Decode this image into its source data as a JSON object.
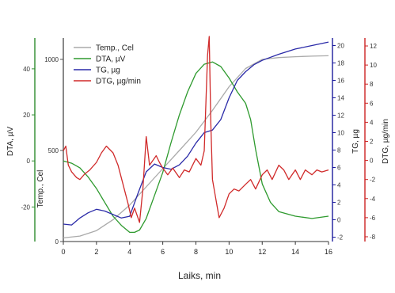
{
  "chart_data": {
    "type": "line",
    "xlabel": "Laiks, min",
    "x_ticks": [
      "0",
      "2",
      "4",
      "6",
      "8",
      "10",
      "12",
      "14",
      "16"
    ],
    "xlim": [
      0,
      16
    ],
    "axes": {
      "dta": {
        "label": "DTA, µV",
        "ylim": [
          -35,
          52
        ],
        "ticks": [
          "-20",
          "0",
          "20",
          "40"
        ],
        "color": "#2e8b2e"
      },
      "temp": {
        "label": "Temp., Cel",
        "ylim": [
          0,
          1100
        ],
        "ticks": [
          "0",
          "500",
          "1000"
        ],
        "color": "#555555"
      },
      "tg": {
        "label": "TG, µg",
        "ylim": [
          -2.5,
          20.5
        ],
        "ticks": [
          "-2",
          "0",
          "2",
          "4",
          "6",
          "8",
          "10",
          "12",
          "14",
          "16",
          "18",
          "20"
        ],
        "color": "#1c1c9c"
      },
      "dtg": {
        "label": "DTG, µg/min",
        "ylim": [
          -8.5,
          12.5
        ],
        "ticks": [
          "-8",
          "-6",
          "-4",
          "-2",
          "0",
          "2",
          "4",
          "6",
          "8",
          "10",
          "12"
        ],
        "color": "#cc2222"
      }
    },
    "legend_position": "top-left",
    "series": [
      {
        "name": "Temp., Cel",
        "axis": "temp",
        "color": "#aaaaaa",
        "x": [
          0,
          1,
          2,
          3,
          4,
          5,
          6,
          7,
          8,
          9,
          10,
          11,
          12,
          13,
          14,
          15,
          16
        ],
        "y": [
          20,
          30,
          60,
          120,
          200,
          300,
          400,
          500,
          600,
          720,
          850,
          950,
          1000,
          1010,
          1015,
          1018,
          1020
        ]
      },
      {
        "name": "DTA, µV",
        "axis": "dta",
        "color": "#2e9a2e",
        "x": [
          0,
          0.5,
          1,
          1.5,
          2,
          2.5,
          3,
          3.5,
          4,
          4.3,
          4.6,
          5,
          5.5,
          6,
          6.5,
          7,
          7.5,
          8,
          8.5,
          9,
          9.5,
          10,
          10.5,
          11,
          11.3,
          11.6,
          12,
          12.5,
          13,
          14,
          15,
          16
        ],
        "y": [
          0,
          -1,
          -3,
          -7,
          -12,
          -18,
          -24,
          -28,
          -31,
          -31,
          -30,
          -25,
          -15,
          -5,
          8,
          20,
          30,
          38,
          42,
          43,
          41,
          36,
          30,
          25,
          18,
          5,
          -10,
          -18,
          -22,
          -24,
          -25,
          -24
        ]
      },
      {
        "name": "TG, µg",
        "axis": "tg",
        "color": "#2a2aa8",
        "x": [
          0,
          0.5,
          1,
          1.5,
          2,
          2.5,
          3,
          3.5,
          4,
          4.5,
          5,
          5.5,
          6,
          6.5,
          7,
          7.5,
          8,
          8.5,
          9,
          9.5,
          10,
          10.5,
          11,
          11.5,
          12,
          13,
          14,
          15,
          16
        ],
        "y": [
          -0.5,
          -0.6,
          0.2,
          0.8,
          1.2,
          1.0,
          0.6,
          0.2,
          0.4,
          3.0,
          5.5,
          6.4,
          6.0,
          5.8,
          6.3,
          7.3,
          8.8,
          10.0,
          10.3,
          11.5,
          14.0,
          16.0,
          17.0,
          17.8,
          18.3,
          19.0,
          19.6,
          20.0,
          20.4
        ]
      },
      {
        "name": "DTG, µg/min",
        "axis": "dtg",
        "color": "#d02a2a",
        "x": [
          0,
          0.15,
          0.3,
          0.5,
          0.8,
          1,
          1.3,
          1.6,
          2,
          2.3,
          2.6,
          3,
          3.3,
          3.6,
          3.9,
          4.1,
          4.3,
          4.6,
          4.8,
          5.0,
          5.2,
          5.4,
          5.6,
          5.8,
          6,
          6.3,
          6.6,
          7,
          7.3,
          7.6,
          8,
          8.3,
          8.5,
          8.7,
          8.8,
          8.9,
          9.0,
          9.2,
          9.4,
          9.7,
          10,
          10.3,
          10.6,
          11,
          11.3,
          11.6,
          12,
          12.3,
          12.6,
          13,
          13.3,
          13.6,
          14,
          14.3,
          14.6,
          15,
          15.3,
          15.6,
          16
        ],
        "y": [
          1,
          1.5,
          -0.5,
          -1.2,
          -1.8,
          -2.0,
          -1.4,
          -1.0,
          -0.2,
          0.8,
          1.5,
          0.8,
          -0.5,
          -2.5,
          -4.5,
          -6.0,
          -5.0,
          -6.5,
          -3.0,
          2.5,
          -0.5,
          0,
          0.5,
          -0.2,
          -0.8,
          -1.5,
          -0.8,
          -1.8,
          -1.0,
          -1.2,
          0.2,
          -0.5,
          1.0,
          11.0,
          13.0,
          4.0,
          -2.0,
          -4.0,
          -6.0,
          -5.0,
          -3.5,
          -3.0,
          -3.2,
          -2.5,
          -2.0,
          -3.0,
          -1.5,
          -1.0,
          -2.0,
          -0.5,
          -1.0,
          -2.0,
          -1.0,
          -2.0,
          -1.0,
          -1.5,
          -1.0,
          -1.2,
          -1.0
        ]
      }
    ]
  }
}
